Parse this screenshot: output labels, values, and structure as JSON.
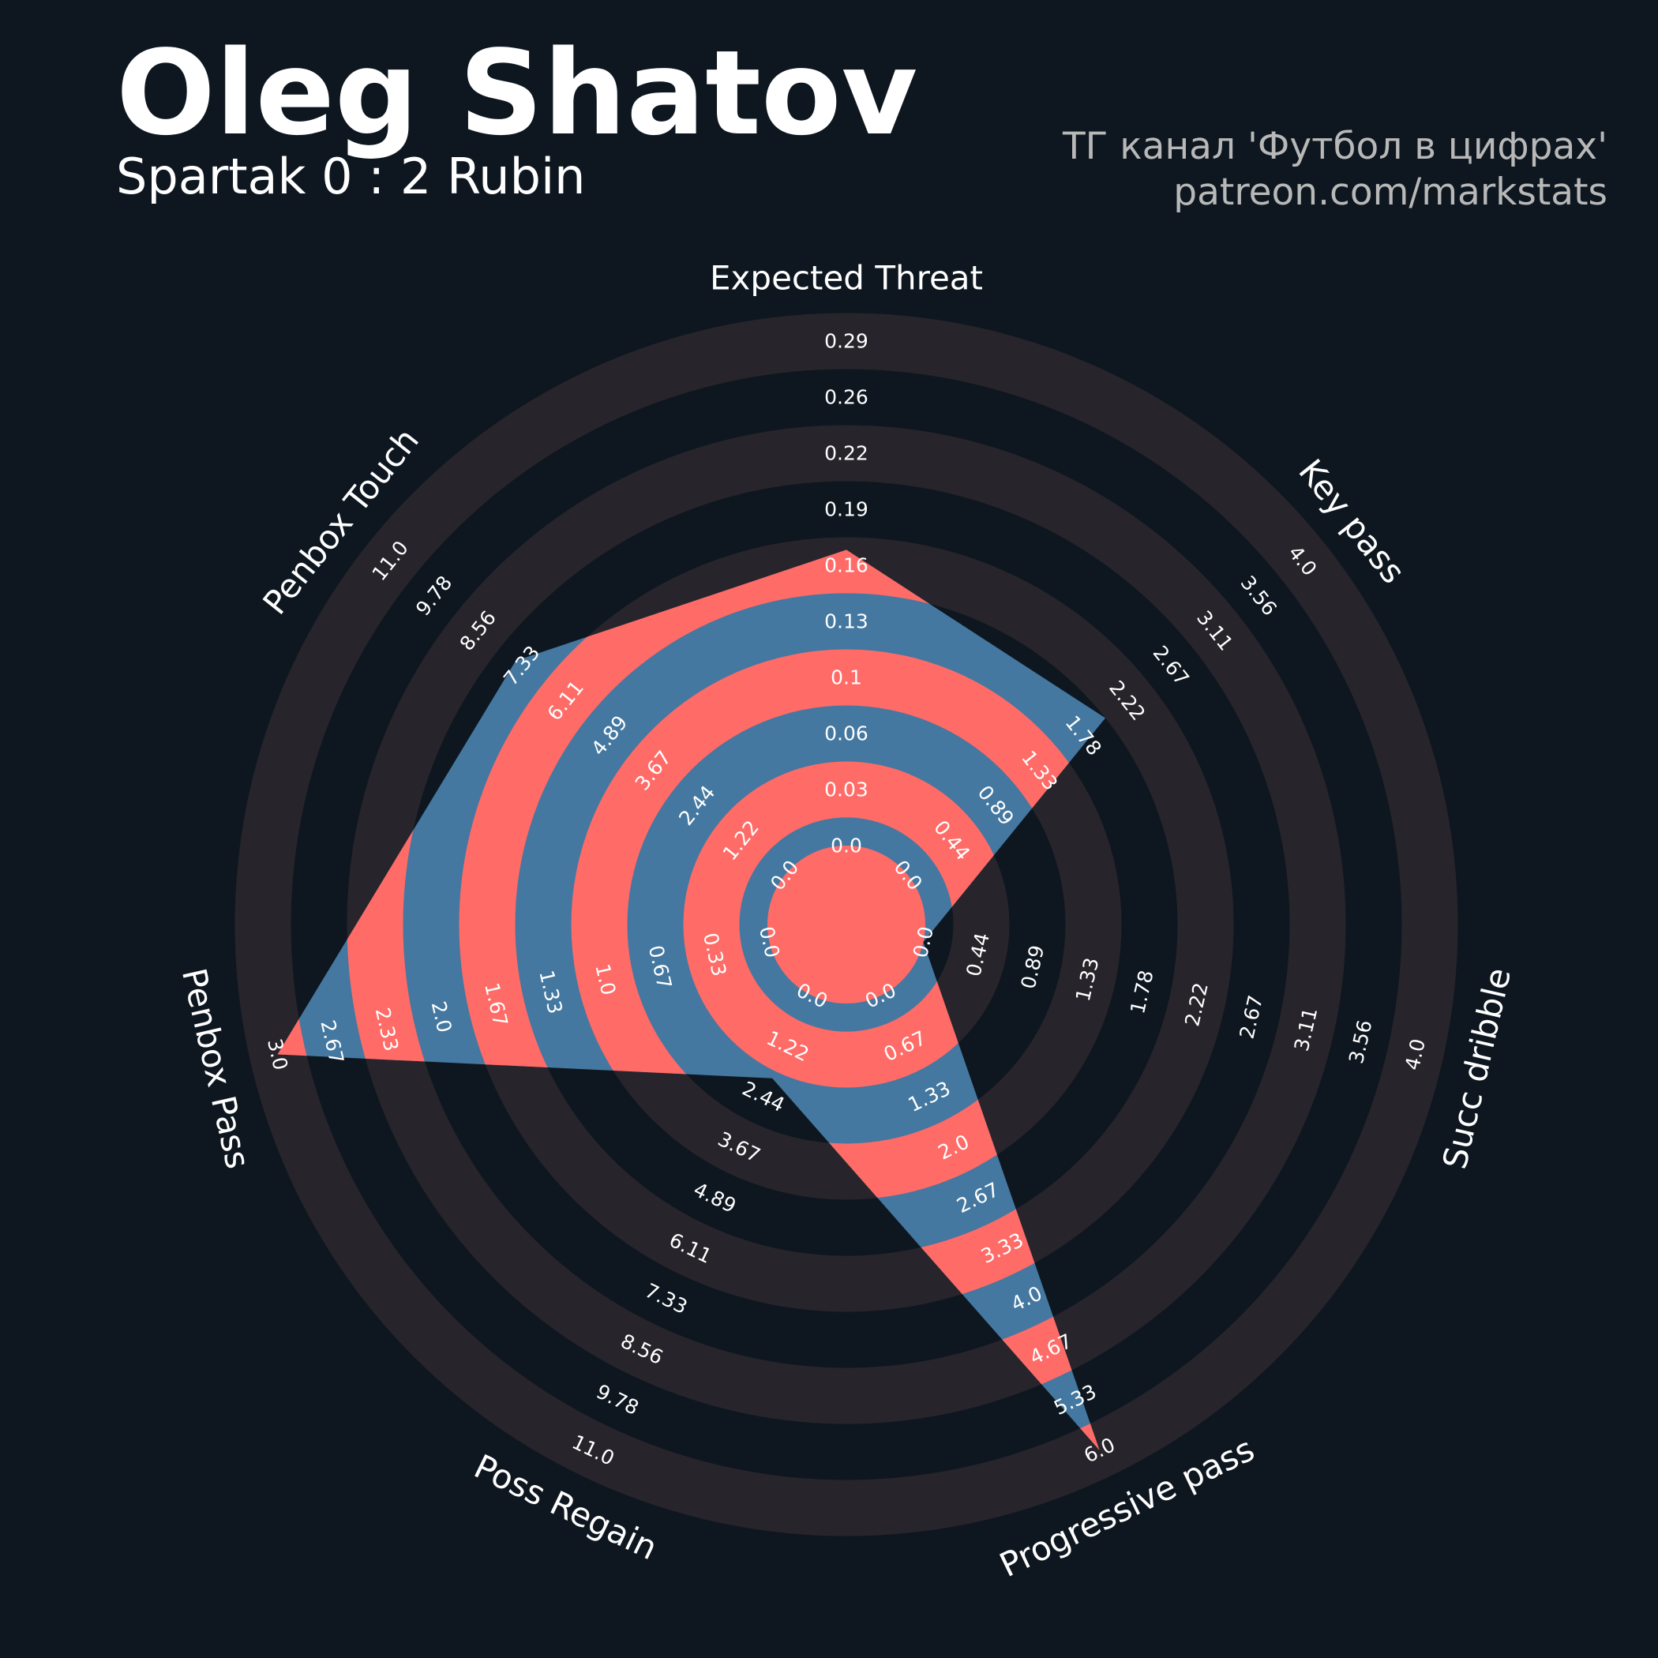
{
  "header": {
    "title": "Oleg Shatov",
    "subtitle": "Spartak 0 : 2 Rubin",
    "credit_line1": "ТГ канал 'Футбол в цифрах'",
    "credit_line2": "patreon.com/markstats"
  },
  "colors": {
    "background": "#0e1720",
    "ring_dark": "#28242b",
    "player_fill_a": "#4478a0",
    "player_fill_b": "#ff6b67",
    "text": "#ffffff",
    "credit_text": "#b8b8b8"
  },
  "chart_data": {
    "type": "radar",
    "params": [
      {
        "name": "Expected Threat",
        "min": 0.0,
        "max": 0.29,
        "value": 0.17,
        "ticks": [
          "0.0",
          "0.03",
          "0.06",
          "0.1",
          "0.13",
          "0.16",
          "0.19",
          "0.22",
          "0.26",
          "0.29"
        ]
      },
      {
        "name": "Key pass",
        "min": 0.0,
        "max": 4.0,
        "value": 2.0,
        "ticks": [
          "0.0",
          "0.44",
          "0.89",
          "1.33",
          "1.78",
          "2.22",
          "2.67",
          "3.11",
          "3.56",
          "4.0"
        ]
      },
      {
        "name": "Succ dribble",
        "min": 0.0,
        "max": 4.0,
        "value": 0.0,
        "ticks": [
          "0.0",
          "0.44",
          "0.89",
          "1.33",
          "1.78",
          "2.22",
          "2.67",
          "3.11",
          "3.56",
          "4.0"
        ]
      },
      {
        "name": "Progressive pass",
        "min": 0.0,
        "max": 6.0,
        "value": 6.0,
        "ticks": [
          "0.0",
          "0.67",
          "1.33",
          "2.0",
          "2.67",
          "3.33",
          "4.0",
          "4.67",
          "5.33",
          "6.0"
        ]
      },
      {
        "name": "Poss Regain",
        "min": 0.0,
        "max": 11.0,
        "value": 2.0,
        "ticks": [
          "0.0",
          "1.22",
          "2.44",
          "3.67",
          "4.89",
          "6.11",
          "7.33",
          "8.56",
          "9.78",
          "11.0"
        ]
      },
      {
        "name": "Penbox Pass",
        "min": 0.0,
        "max": 3.0,
        "value": 3.0,
        "ticks": [
          "0.0",
          "0.33",
          "0.67",
          "1.0",
          "1.33",
          "1.67",
          "2.0",
          "2.33",
          "2.67",
          "3.0"
        ]
      },
      {
        "name": "Penbox Touch",
        "min": 0.0,
        "max": 11.0,
        "value": 7.5,
        "ticks": [
          "0.0",
          "1.22",
          "2.44",
          "3.67",
          "4.89",
          "6.11",
          "7.33",
          "8.56",
          "9.78",
          "11.0"
        ]
      }
    ]
  }
}
